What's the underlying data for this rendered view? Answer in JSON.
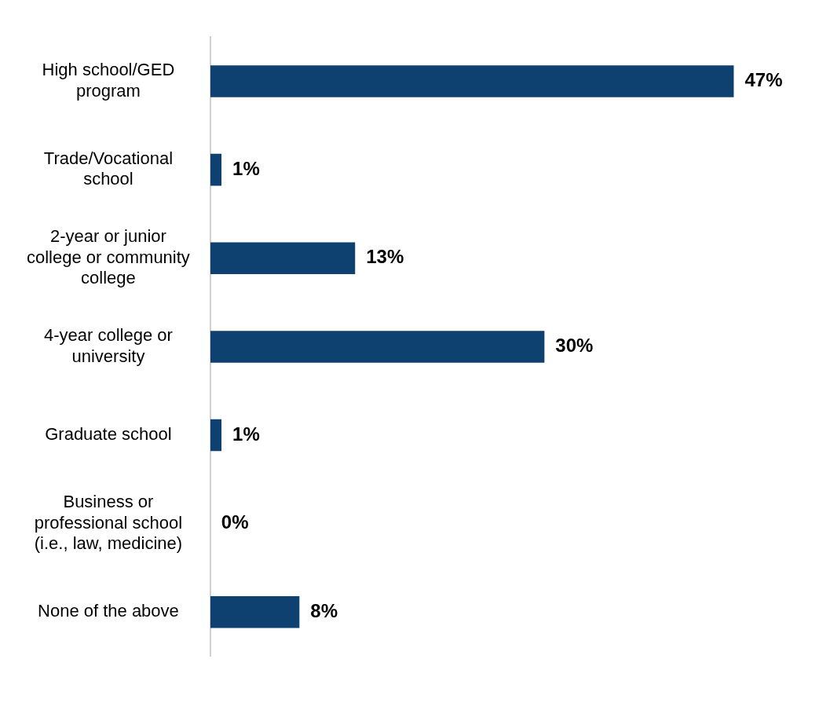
{
  "chart_data": {
    "type": "bar",
    "orientation": "horizontal",
    "categories": [
      "High school/GED program",
      "Trade/Vocational school",
      "2-year or junior college or community college",
      "4-year college or university",
      "Graduate school",
      "Business or professional school (i.e., law, medicine)",
      "None of the above"
    ],
    "values": [
      47,
      1,
      13,
      30,
      1,
      0,
      8
    ],
    "value_labels": [
      "47%",
      "1%",
      "13%",
      "30%",
      "1%",
      "0%",
      "8%"
    ],
    "color": "#0f4170",
    "grid": false,
    "legend": false
  }
}
